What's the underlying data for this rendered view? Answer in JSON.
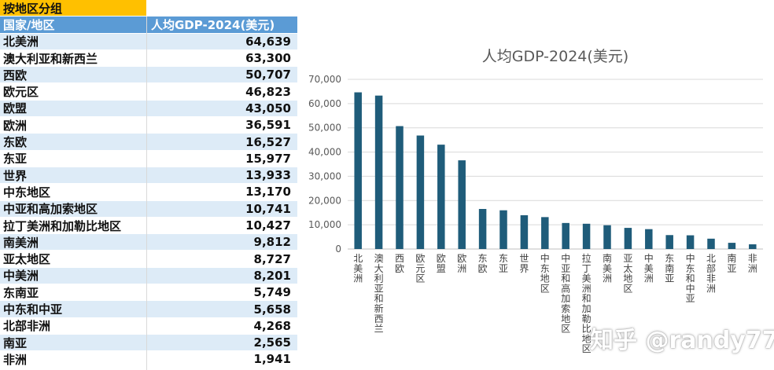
{
  "sheet": {
    "title": "按地区分组",
    "header": {
      "col1": "国家/地区",
      "col2": "人均GDP-2024(美元)"
    },
    "rows": [
      {
        "name": "北美洲",
        "value": "64,639"
      },
      {
        "name": "澳大利亚和新西兰",
        "value": "63,300"
      },
      {
        "name": "西欧",
        "value": "50,707"
      },
      {
        "name": "欧元区",
        "value": "46,823"
      },
      {
        "name": "欧盟",
        "value": "43,050"
      },
      {
        "name": "欧洲",
        "value": "36,591"
      },
      {
        "name": "东欧",
        "value": "16,527"
      },
      {
        "name": "东亚",
        "value": "15,977"
      },
      {
        "name": "世界",
        "value": "13,933"
      },
      {
        "name": "中东地区",
        "value": "13,170"
      },
      {
        "name": "中亚和高加索地区",
        "value": "10,741"
      },
      {
        "name": "拉丁美洲和加勒比地区",
        "value": "10,427"
      },
      {
        "name": "南美洲",
        "value": "9,812"
      },
      {
        "name": "亚太地区",
        "value": "8,727"
      },
      {
        "name": "中美洲",
        "value": "8,201"
      },
      {
        "name": "东南亚",
        "value": "5,749"
      },
      {
        "name": "中东和中亚",
        "value": "5,658"
      },
      {
        "name": "北部非洲",
        "value": "4,268"
      },
      {
        "name": "南亚",
        "value": "2,565"
      },
      {
        "name": "非洲",
        "value": "1,941"
      }
    ]
  },
  "chart_data": {
    "type": "bar",
    "title": "人均GDP-2024(美元)",
    "xlabel": "",
    "ylabel": "",
    "ylim": [
      0,
      70000
    ],
    "yticks": [
      0,
      10000,
      20000,
      30000,
      40000,
      50000,
      60000,
      70000
    ],
    "ytick_labels": [
      "0",
      "10,000",
      "20,000",
      "30,000",
      "40,000",
      "50,000",
      "60,000",
      "70,000"
    ],
    "grid": true,
    "legend": "none",
    "bar_color": "#1f5c7a",
    "categories": [
      "北美洲",
      "澳大利亚和新西兰",
      "西欧",
      "欧元区",
      "欧盟",
      "欧洲",
      "东欧",
      "东亚",
      "世界",
      "中东地区",
      "中亚和高加索地区",
      "拉丁美洲和加勒比地区",
      "南美洲",
      "亚太地区",
      "中美洲",
      "东南亚",
      "中东和中亚",
      "北部非洲",
      "南亚",
      "非洲"
    ],
    "values": [
      64639,
      63300,
      50707,
      46823,
      43050,
      36591,
      16527,
      15977,
      13933,
      13170,
      10741,
      10427,
      9812,
      8727,
      8201,
      5749,
      5658,
      4268,
      2565,
      1941
    ]
  },
  "watermark": "知乎 @randy77"
}
